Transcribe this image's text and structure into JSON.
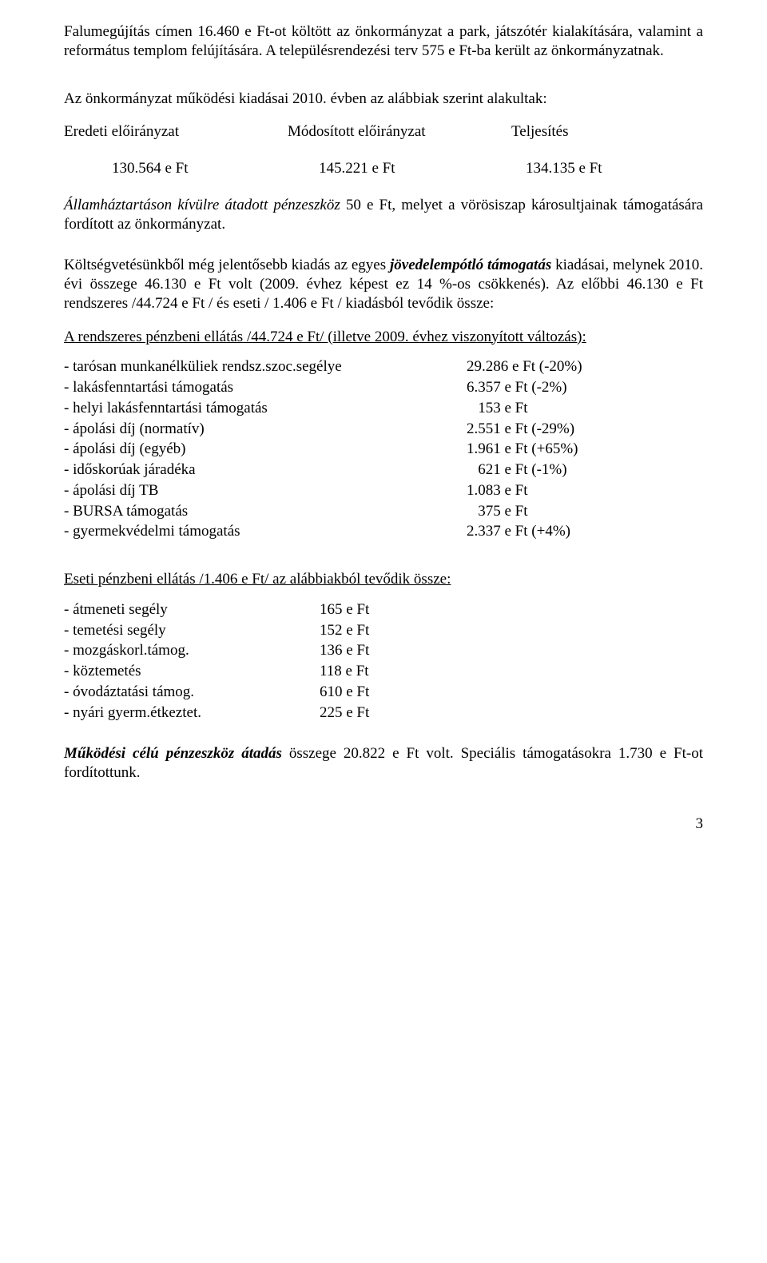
{
  "p1": "Falumegújítás címen 16.460 e Ft-ot költött az önkormányzat a park, játszótér kialakítására, valamint a református templom felújítására. A településrendezési terv 575 e Ft-ba került az önkormányzatnak.",
  "p2": "Az önkormányzat működési kiadásai 2010. évben az alábbiak szerint alakultak:",
  "t1": {
    "h1": "Eredeti előirányzat",
    "h2": "Módosított előirányzat",
    "h3": "Teljesítés",
    "v1": "130.564 e Ft",
    "v2": "145.221 e Ft",
    "v3": "134.135 e Ft"
  },
  "p3a": "Államháztartáson kívülre átadott pénzeszköz",
  "p3b": " 50 e Ft, melyet a vörösiszap károsultjainak támogatására fordított az önkormányzat.",
  "p4a": "Költségvetésünkből még jelentősebb kiadás az egyes ",
  "p4b": "jövedelempótló támogatás",
  "p4c": " kiadásai, melynek 2010. évi összege 46.130 e Ft volt (2009. évhez képest ez 14 %-os csökkenés). Az előbbi 46.130 e Ft rendszeres /44.724 e Ft / és eseti / 1.406 e Ft / kiadásból tevődik össze:",
  "u1": "A rendszeres pénzbeni ellátás /44.724 e Ft/ (illetve 2009. évhez viszonyított változás):",
  "rows1": [
    {
      "l": "- tarósan munkanélküliek rendsz.szoc.segélye",
      "v": "29.286 e Ft (-20%)"
    },
    {
      "l": "- lakásfenntartási támogatás",
      "v": "6.357 e Ft (-2%)"
    },
    {
      "l": "- helyi lakásfenntartási támogatás",
      "v": "   153 e Ft"
    },
    {
      "l": "- ápolási díj (normatív)",
      "v": "2.551 e Ft (-29%)"
    },
    {
      "l": "- ápolási díj (egyéb)",
      "v": "1.961 e Ft (+65%)"
    },
    {
      "l": "- időskorúak járadéka",
      "v": "   621 e Ft (-1%)"
    },
    {
      "l": "- ápolási díj TB",
      "v": "1.083 e Ft"
    },
    {
      "l": "- BURSA támogatás",
      "v": "   375 e Ft"
    },
    {
      "l": "- gyermekvédelmi támogatás",
      "v": "2.337 e Ft (+4%)"
    }
  ],
  "u2": "Eseti pénzbeni ellátás /1.406 e Ft/ az alábbiakból tevődik össze:",
  "rows2": [
    {
      "l": "- átmeneti segély",
      "v": "165 e Ft"
    },
    {
      "l": "- temetési segély",
      "v": "152 e Ft"
    },
    {
      "l": "- mozgáskorl.támog.",
      "v": "136 e Ft"
    },
    {
      "l": "- köztemetés",
      "v": "118 e Ft"
    },
    {
      "l": "- óvodáztatási támog.",
      "v": "610 e Ft"
    },
    {
      "l": "- nyári gyerm.étkeztet.",
      "v": "225 e Ft"
    }
  ],
  "p5a": "Működési célú pénzeszköz átadás",
  "p5b": " összege 20.822 e Ft volt. Speciális támogatásokra 1.730 e Ft-ot fordítottunk.",
  "page": "3"
}
